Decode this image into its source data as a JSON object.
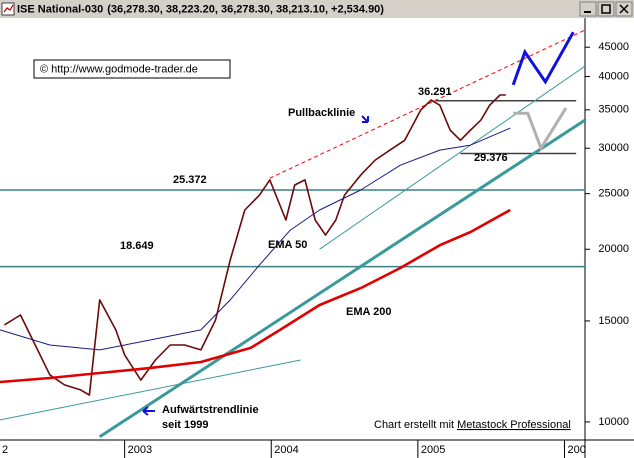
{
  "chart_data": {
    "type": "line",
    "title": "ISE National-030",
    "ohlc_label": "(36,278.30, 38,223.20, 36,278.30, 38,213.10, +2,534.90)",
    "copyright": "© http://www.godmode-trader.de",
    "credit_prefix": "Chart erstellt mit",
    "credit_link": "Metastock Professional",
    "log_scale": true,
    "xlim": [
      2002.15,
      2006.14
    ],
    "xticks": [
      {
        "value": 2002,
        "label": "2"
      },
      2003,
      2004,
      2005,
      {
        "value": 2006,
        "label": "200"
      }
    ],
    "ylim": [
      9300,
      50600
    ],
    "yticks": [
      10000,
      15000,
      20000,
      25000,
      30000,
      35000,
      40000,
      45000
    ],
    "series": [
      {
        "color": "#6b0a0a",
        "x": [
          2002.18,
          2002.29,
          2002.39,
          2002.49,
          2002.59,
          2002.7,
          2002.76,
          2002.83,
          2002.94,
          2003.0,
          2003.11,
          2003.21,
          2003.31,
          2003.41,
          2003.52,
          2003.62,
          2003.72,
          2003.82,
          2003.92,
          2003.99,
          2004.1,
          2004.16,
          2004.23,
          2004.3,
          2004.37,
          2004.44,
          2004.5,
          2004.61,
          2004.71,
          2004.81,
          2004.91,
          2005.02,
          2005.09,
          2005.15,
          2005.22,
          2005.29,
          2005.36,
          2005.43,
          2005.49,
          2005.56,
          2005.6
        ],
        "values": [
          14760,
          15360,
          13620,
          12080,
          11600,
          11370,
          11140,
          16320,
          14470,
          13090,
          11830,
          12820,
          13620,
          13620,
          13350,
          15050,
          19150,
          23410,
          24860,
          26420,
          22490,
          25880,
          26420,
          22490,
          21170,
          22490,
          24860,
          26930,
          28610,
          29770,
          30970,
          34990,
          36390,
          35650,
          32280,
          30970,
          32280,
          33590,
          35650,
          37150,
          37150
        ]
      },
      {
        "name": "EMA 50",
        "color": "#1a1a80",
        "x": [
          2002.15,
          2002.49,
          2002.83,
          2003.17,
          2003.52,
          2003.72,
          2003.92,
          2004.13,
          2004.33,
          2004.61,
          2004.88,
          2005.15,
          2005.36,
          2005.63
        ],
        "values": [
          14470,
          13620,
          13350,
          13890,
          14470,
          16320,
          18780,
          21600,
          23410,
          25370,
          28030,
          29770,
          30380,
          32530
        ]
      },
      {
        "name": "EMA 200",
        "color": "#e00000",
        "x": [
          2002.15,
          2002.49,
          2002.83,
          2003.17,
          2003.52,
          2003.86,
          2004.06,
          2004.33,
          2004.61,
          2004.88,
          2005.15,
          2005.36,
          2005.63
        ],
        "values": [
          11740,
          11930,
          12170,
          12410,
          12720,
          13460,
          14470,
          15990,
          17110,
          18550,
          20330,
          21430,
          23410
        ]
      }
    ],
    "levels": [
      {
        "value": 25372,
        "label": "25.372",
        "x": [
          2002.15,
          2006.14
        ],
        "color": "#3a8080"
      },
      {
        "value": 18649,
        "label": "18.649",
        "x": [
          2002.15,
          2006.14
        ],
        "color": "#3a8080"
      },
      {
        "value": 36291,
        "label": "36.291",
        "x": [
          2005.12,
          2006.08
        ],
        "color": "#404040"
      },
      {
        "value": 29376,
        "label": "29.376",
        "x": [
          2005.29,
          2006.08
        ],
        "color": "#404040"
      }
    ],
    "trendlines": [
      {
        "x": [
          2002.83,
          2006.14
        ],
        "y": [
          9420,
          33590
        ],
        "color": "#3a9a9a",
        "width": 3,
        "dash": false
      },
      {
        "x": [
          2002.15,
          2004.2
        ],
        "y": [
          10080,
          12820
        ],
        "color": "#3a9a9a",
        "width": 1,
        "dash": false
      },
      {
        "x": [
          2004.33,
          2006.14
        ],
        "y": [
          20000,
          41700
        ],
        "color": "#3a9a9a",
        "width": 1,
        "dash": false
      },
      {
        "x": [
          2003.99,
          2006.14
        ],
        "y": [
          26600,
          48200
        ],
        "color": "#ff0000",
        "width": 1,
        "dash": true
      }
    ],
    "projections": [
      {
        "x": [
          2005.65,
          2005.73,
          2005.87,
          2006.06
        ],
        "y": [
          38690,
          44140,
          39160,
          47800
        ],
        "color": "#1010e0"
      },
      {
        "x": [
          2005.65,
          2005.75,
          2005.84,
          2006.01
        ],
        "y": [
          34530,
          34530,
          30000,
          35240
        ],
        "color": "#b0b0b0"
      }
    ],
    "annotations": {
      "pullback": "Pullbacklinie",
      "trend_1": "Aufwärtstrendlinie",
      "trend_2": "seit 1999"
    }
  }
}
